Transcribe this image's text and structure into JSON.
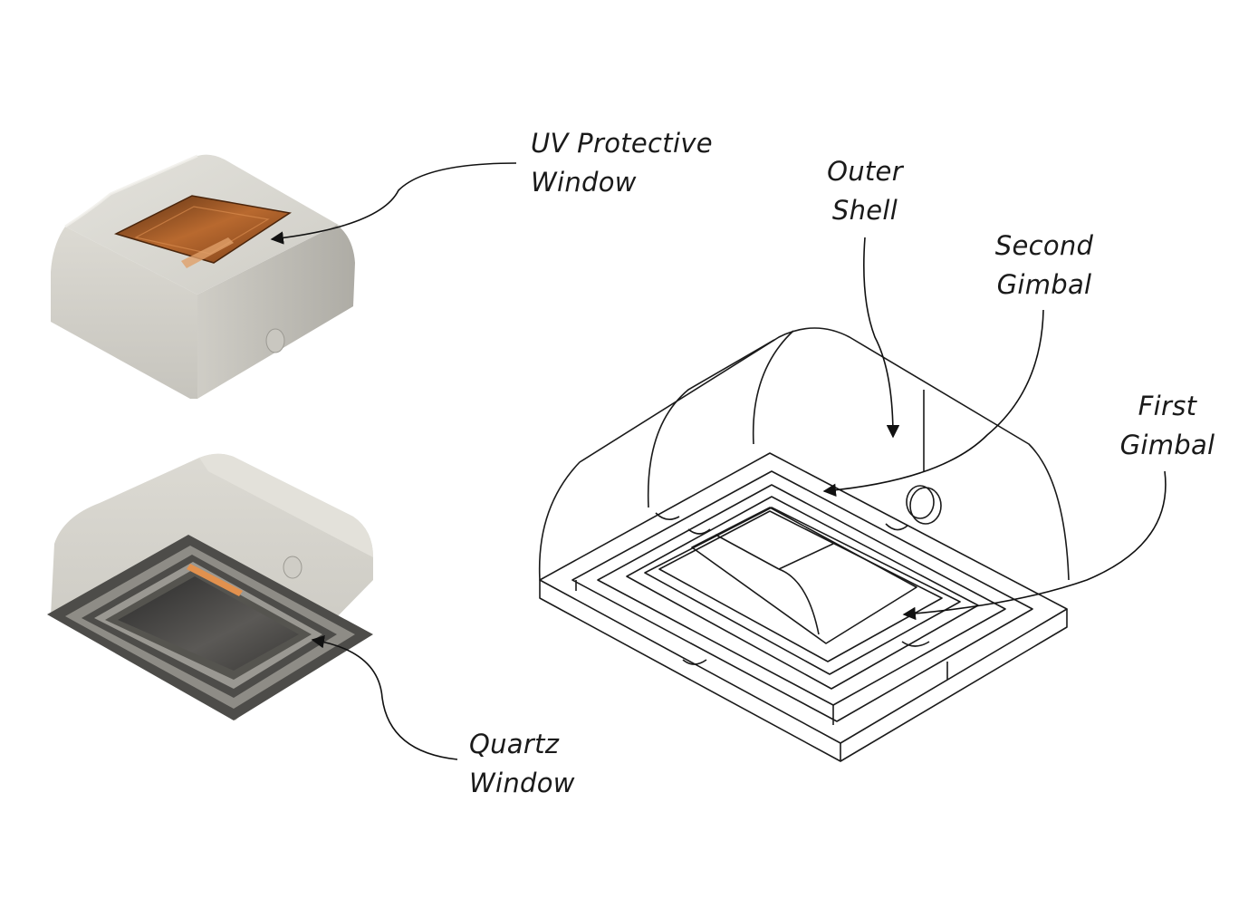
{
  "labels": {
    "uv_window": {
      "line1": "UV Protective",
      "line2": "Window"
    },
    "quartz_window": {
      "line1": "Quartz",
      "line2": "Window"
    },
    "outer_shell": {
      "line1": "Outer",
      "line2": "Shell"
    },
    "second_gimbal": {
      "line1": "Second",
      "line2": "Gimbal"
    },
    "first_gimbal": {
      "line1": "First",
      "line2": "Gimbal"
    }
  },
  "colors": {
    "shell": "#d9d7d0",
    "shell_dark": "#8f8d86",
    "window_copper": "#b0652c",
    "frame_dark": "#4c4c4a",
    "line_art": "#1a1a1a"
  }
}
